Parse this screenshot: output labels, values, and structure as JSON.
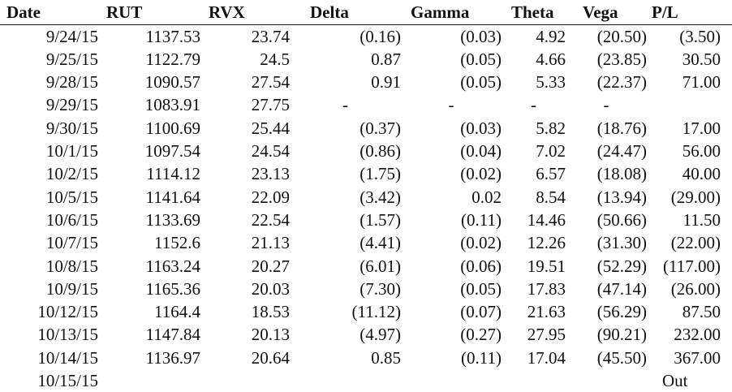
{
  "table": {
    "columns": [
      "Date",
      "RUT",
      "RVX",
      "Delta",
      "Gamma",
      "Theta",
      "Vega",
      "P/L"
    ],
    "rows": [
      [
        "9/24/15",
        "1137.53",
        "23.74",
        "(0.16)",
        "(0.03)",
        "4.92",
        "(20.50)",
        "(3.50)"
      ],
      [
        "9/25/15",
        "1122.79",
        "24.5",
        "0.87",
        "(0.05)",
        "4.66",
        "(23.85)",
        "30.50"
      ],
      [
        "9/28/15",
        "1090.57",
        "27.54",
        "0.91",
        "(0.05)",
        "5.33",
        "(22.37)",
        "71.00"
      ],
      [
        "9/29/15",
        "1083.91",
        "27.75",
        "-",
        "-",
        "-",
        "-",
        ""
      ],
      [
        "9/30/15",
        "1100.69",
        "25.44",
        "(0.37)",
        "(0.03)",
        "5.82",
        "(18.76)",
        "17.00"
      ],
      [
        "10/1/15",
        "1097.54",
        "24.54",
        "(0.86)",
        "(0.04)",
        "7.02",
        "(24.47)",
        "56.00"
      ],
      [
        "10/2/15",
        "1114.12",
        "23.13",
        "(1.75)",
        "(0.02)",
        "6.57",
        "(18.08)",
        "40.00"
      ],
      [
        "10/5/15",
        "1141.64",
        "22.09",
        "(3.42)",
        "0.02",
        "8.54",
        "(13.94)",
        "(29.00)"
      ],
      [
        "10/6/15",
        "1133.69",
        "22.54",
        "(1.57)",
        "(0.11)",
        "14.46",
        "(50.66)",
        "11.50"
      ],
      [
        "10/7/15",
        "1152.6",
        "21.13",
        "(4.41)",
        "(0.02)",
        "12.26",
        "(31.30)",
        "(22.00)"
      ],
      [
        "10/8/15",
        "1163.24",
        "20.27",
        "(6.01)",
        "(0.06)",
        "19.51",
        "(52.29)",
        "(117.00)"
      ],
      [
        "10/9/15",
        "1165.36",
        "20.03",
        "(7.30)",
        "(0.05)",
        "17.83",
        "(47.14)",
        "(26.00)"
      ],
      [
        "10/12/15",
        "1164.4",
        "18.53",
        "(11.12)",
        "(0.07)",
        "21.63",
        "(56.29)",
        "87.50"
      ],
      [
        "10/13/15",
        "1147.84",
        "20.13",
        "(4.97)",
        "(0.27)",
        "27.95",
        "(90.21)",
        "232.00"
      ],
      [
        "10/14/15",
        "1136.97",
        "20.64",
        "0.85",
        "(0.11)",
        "17.04",
        "(45.50)",
        "367.00"
      ],
      [
        "10/15/15",
        "",
        "",
        "",
        "",
        "",
        "",
        "Out"
      ]
    ]
  }
}
